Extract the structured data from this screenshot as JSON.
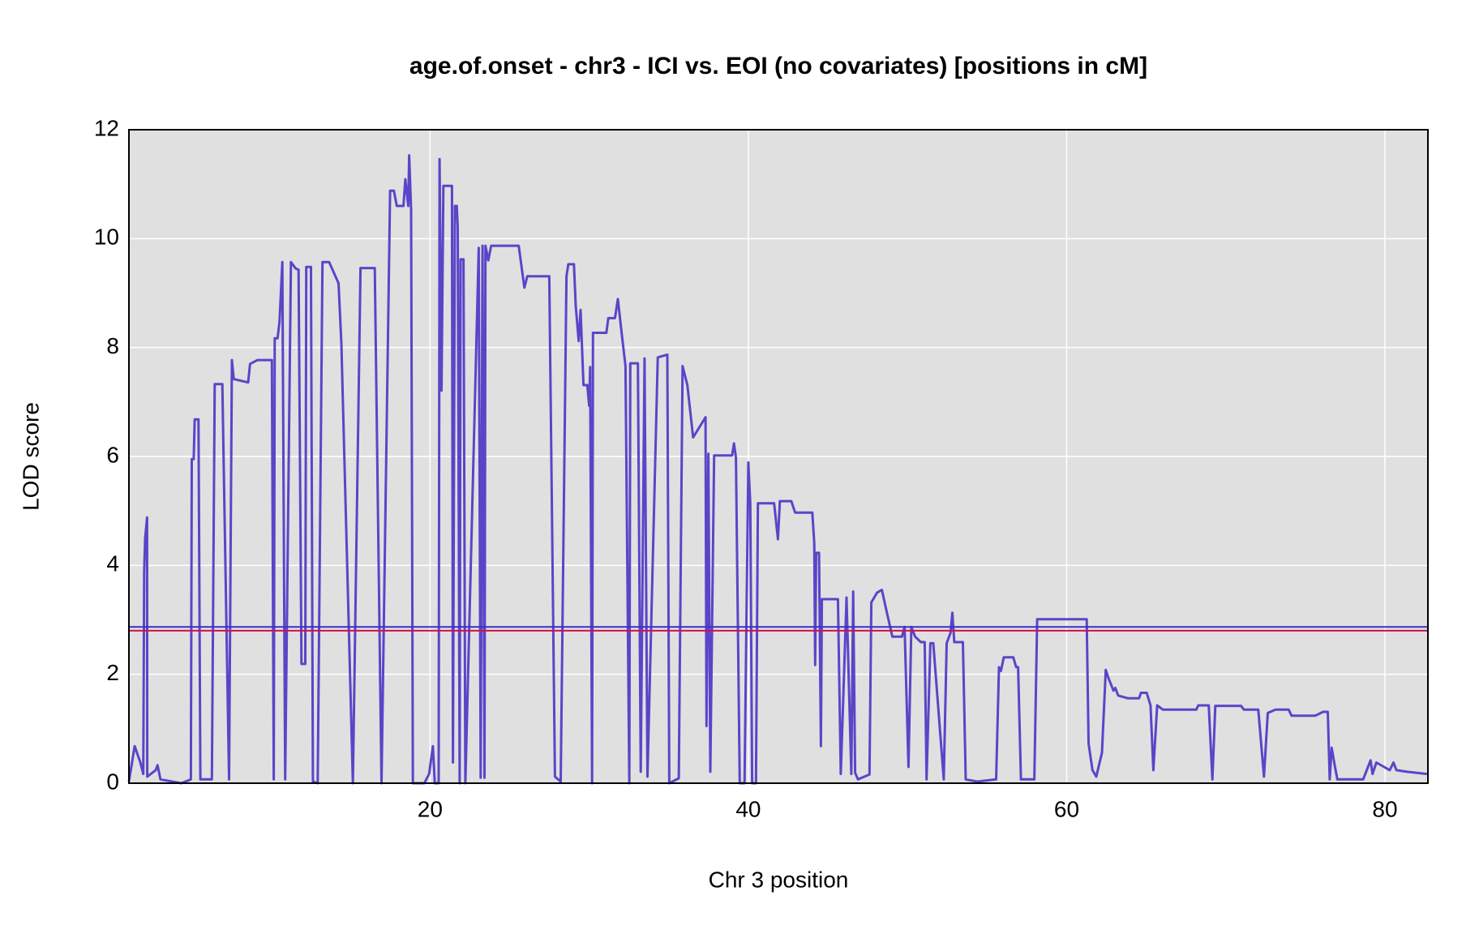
{
  "chart_data": {
    "type": "line",
    "title": "age.of.onset - chr3 - ICI vs. EOI (no covariates) [positions in cM]",
    "xlabel": "Chr 3 position",
    "ylabel": "LOD score",
    "xlim": [
      1.08,
      82.7
    ],
    "ylim": [
      0,
      12
    ],
    "xticks": [
      20,
      40,
      60,
      80
    ],
    "yticks": [
      0,
      2,
      4,
      6,
      8,
      10,
      12
    ],
    "grid": true,
    "hlines": [
      {
        "value": 2.87,
        "color": "#3b2fc9"
      },
      {
        "value": 2.8,
        "color": "#d0104c"
      }
    ],
    "series": [
      {
        "color": "#5a45c8",
        "x": [
          1.08,
          1.44,
          1.8,
          1.98,
          2.04,
          2.1,
          2.22,
          2.23,
          2.76,
          2.88,
          3.06,
          4.37,
          4.97,
          5.03,
          5.15,
          5.21,
          5.45,
          5.57,
          6.29,
          6.47,
          6.95,
          7.37,
          7.55,
          7.67,
          8.57,
          8.69,
          9.16,
          10.06,
          10.18,
          10.24,
          10.42,
          10.54,
          10.72,
          10.9,
          11.26,
          11.56,
          11.74,
          11.92,
          12.16,
          12.22,
          12.52,
          12.64,
          12.94,
          13.24,
          13.66,
          14.25,
          14.43,
          15.15,
          15.63,
          16.53,
          16.95,
          17.49,
          17.73,
          17.91,
          18.33,
          18.45,
          18.63,
          18.69,
          18.81,
          18.92,
          19.64,
          19.94,
          20.18,
          20.3,
          20.54,
          20.6,
          20.72,
          20.84,
          21.38,
          21.44,
          21.56,
          21.68,
          21.74,
          21.86,
          21.92,
          22.1,
          22.22,
          23.06,
          23.18,
          23.3,
          23.42,
          23.48,
          23.66,
          23.84,
          25.57,
          25.93,
          26.11,
          27.49,
          27.85,
          28.21,
          28.57,
          28.69,
          29.04,
          29.16,
          29.34,
          29.46,
          29.64,
          29.88,
          30.0,
          30.06,
          30.18,
          30.24,
          31.08,
          31.2,
          31.62,
          31.8,
          32.04,
          32.28,
          32.52,
          32.58,
          33.06,
          33.24,
          33.48,
          33.66,
          34.31,
          34.91,
          35.03,
          35.63,
          35.87,
          36.17,
          36.53,
          37.31,
          37.37,
          37.49,
          37.61,
          37.85,
          38.98,
          39.1,
          39.22,
          39.46,
          39.76,
          40.0,
          40.12,
          40.24,
          40.48,
          40.6,
          41.62,
          41.86,
          41.98,
          42.7,
          42.94,
          44.02,
          44.14,
          44.2,
          44.26,
          44.44,
          44.56,
          44.62,
          45.63,
          45.81,
          46.17,
          46.47,
          46.59,
          46.71,
          46.89,
          47.61,
          47.73,
          48.09,
          48.39,
          48.69,
          49.05,
          49.65,
          49.82,
          50.06,
          50.24,
          50.48,
          50.84,
          51.08,
          51.2,
          51.44,
          51.62,
          52.28,
          52.46,
          52.7,
          52.82,
          52.94,
          53.48,
          53.66,
          54.38,
          55.57,
          55.75,
          55.87,
          56.05,
          56.65,
          56.83,
          56.95,
          57.13,
          57.97,
          58.15,
          61.26,
          61.38,
          61.62,
          61.86,
          62.22,
          62.46,
          62.64,
          62.94,
          63.06,
          63.24,
          63.84,
          64.55,
          64.67,
          65.03,
          65.27,
          65.45,
          65.69,
          66.05,
          68.15,
          68.27,
          68.93,
          69.16,
          69.34,
          70.96,
          71.14,
          72.04,
          72.4,
          72.64,
          73.12,
          73.95,
          74.13,
          75.63,
          76.11,
          76.41,
          76.53,
          76.65,
          76.83,
          77.01,
          78.63,
          79.1,
          79.22,
          79.46,
          80.3,
          80.54,
          80.72,
          81.38,
          82.64
        ],
        "values": [
          0.03,
          0.68,
          0.38,
          0.17,
          3.88,
          4.5,
          4.88,
          0.12,
          0.24,
          0.33,
          0.07,
          0,
          0.07,
          5.95,
          5.95,
          6.68,
          6.68,
          0.07,
          0.07,
          7.33,
          7.33,
          0.07,
          7.77,
          7.42,
          7.36,
          7.7,
          7.77,
          7.77,
          0.07,
          8.17,
          8.17,
          8.47,
          9.57,
          0.07,
          9.57,
          9.45,
          9.43,
          2.19,
          2.19,
          9.48,
          9.48,
          0.03,
          0,
          9.57,
          9.57,
          9.18,
          8.08,
          0,
          9.46,
          9.46,
          0,
          10.88,
          10.88,
          10.6,
          10.6,
          11.09,
          10.6,
          11.53,
          10.53,
          0,
          0,
          0.17,
          0.68,
          0,
          0,
          11.46,
          7.21,
          10.97,
          10.97,
          0.38,
          10.6,
          10.6,
          10.22,
          0,
          9.62,
          9.62,
          0,
          9.83,
          0.1,
          9.87,
          0.1,
          9.87,
          9.6,
          9.87,
          9.87,
          9.1,
          9.31,
          9.31,
          0.12,
          0.03,
          9.31,
          9.53,
          9.53,
          8.75,
          8.12,
          8.69,
          7.31,
          7.31,
          6.93,
          7.64,
          0,
          8.27,
          8.27,
          8.54,
          8.54,
          8.89,
          8.26,
          7.66,
          0,
          7.71,
          7.71,
          0.21,
          7.8,
          0.12,
          7.82,
          7.87,
          0,
          0.09,
          7.66,
          7.31,
          6.35,
          6.72,
          1.05,
          6.05,
          0.21,
          6.02,
          6.02,
          6.24,
          5.98,
          0,
          0,
          5.89,
          5.14,
          0,
          0,
          5.14,
          5.14,
          4.48,
          5.18,
          5.18,
          4.97,
          4.97,
          4.41,
          2.17,
          4.23,
          4.23,
          0.68,
          3.38,
          3.38,
          0.17,
          3.41,
          0.17,
          3.52,
          0.19,
          0.07,
          0.16,
          3.32,
          3.5,
          3.55,
          3.15,
          2.69,
          2.69,
          2.87,
          0.3,
          2.87,
          2.69,
          2.59,
          2.59,
          0.07,
          2.57,
          2.57,
          0.07,
          2.57,
          2.76,
          3.13,
          2.59,
          2.59,
          0.07,
          0.03,
          0.07,
          2.13,
          2.06,
          2.31,
          2.31,
          2.13,
          2.13,
          0.07,
          0.07,
          3.01,
          3.01,
          0.73,
          0.24,
          0.12,
          0.56,
          2.08,
          1.92,
          1.7,
          1.75,
          1.61,
          1.56,
          1.56,
          1.66,
          1.66,
          1.43,
          0.24,
          1.43,
          1.35,
          1.35,
          1.43,
          1.43,
          0.07,
          1.42,
          1.42,
          1.35,
          1.35,
          0.12,
          1.29,
          1.35,
          1.35,
          1.24,
          1.24,
          1.31,
          1.31,
          0.07,
          0.65,
          0.35,
          0.07,
          0.07,
          0.42,
          0.17,
          0.38,
          0.24,
          0.38,
          0.24,
          0.21,
          0.17
        ]
      }
    ]
  }
}
